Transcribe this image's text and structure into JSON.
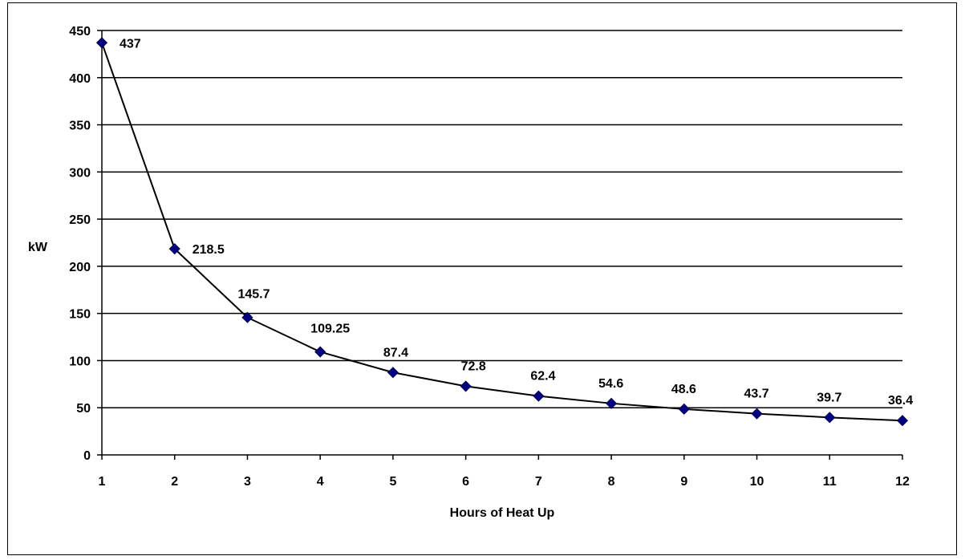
{
  "chart_data": {
    "type": "line",
    "title": "",
    "xlabel": "Hours of Heat Up",
    "ylabel": "kW",
    "x": [
      1,
      2,
      3,
      4,
      5,
      6,
      7,
      8,
      9,
      10,
      11,
      12
    ],
    "series": [
      {
        "values": [
          437,
          218.5,
          145.7,
          109.25,
          87.4,
          72.8,
          62.4,
          54.6,
          48.6,
          43.7,
          39.7,
          36.4
        ],
        "value_labels": [
          "437",
          "218.5",
          "145.7",
          "109.25",
          "87.4",
          "72.8",
          "62.4",
          "54.6",
          "48.6",
          "43.7",
          "39.7",
          "36.4"
        ],
        "color": "#000080",
        "line_color": "#000000",
        "marker": "diamond"
      }
    ],
    "yticks": [
      "0",
      "50",
      "100",
      "150",
      "200",
      "250",
      "300",
      "350",
      "400",
      "450"
    ],
    "xticks": [
      "1",
      "2",
      "3",
      "4",
      "5",
      "6",
      "7",
      "8",
      "9",
      "10",
      "11",
      "12"
    ],
    "ylim": [
      0,
      450
    ],
    "xlim": [
      1,
      12
    ],
    "grid": "horizontal",
    "legend": "none"
  }
}
